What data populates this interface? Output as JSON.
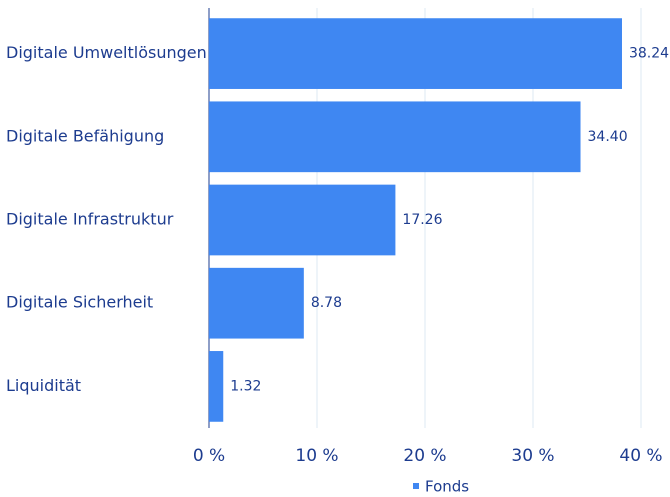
{
  "chart_data": {
    "type": "hbar",
    "categories": [
      "Digitale Umweltlösungen",
      "Digitale Befähigung",
      "Digitale Infrastruktur",
      "Digitale Sicherheit",
      "Liquidität"
    ],
    "series": [
      {
        "name": "Fonds",
        "color": "#3f87f2",
        "values": [
          38.24,
          34.4,
          17.26,
          8.78,
          1.32
        ],
        "value_labels": [
          "38.24",
          "34.40",
          "17.26",
          "8.78",
          "1.32"
        ]
      }
    ],
    "xlim": [
      0,
      40
    ],
    "xticks": [
      {
        "value": 0,
        "label": "0 %"
      },
      {
        "value": 10,
        "label": "10 %"
      },
      {
        "value": 20,
        "label": "20 %"
      },
      {
        "value": 30,
        "label": "30 %"
      },
      {
        "value": 40,
        "label": "40 %"
      }
    ],
    "grid": true,
    "legend": "bottom"
  }
}
